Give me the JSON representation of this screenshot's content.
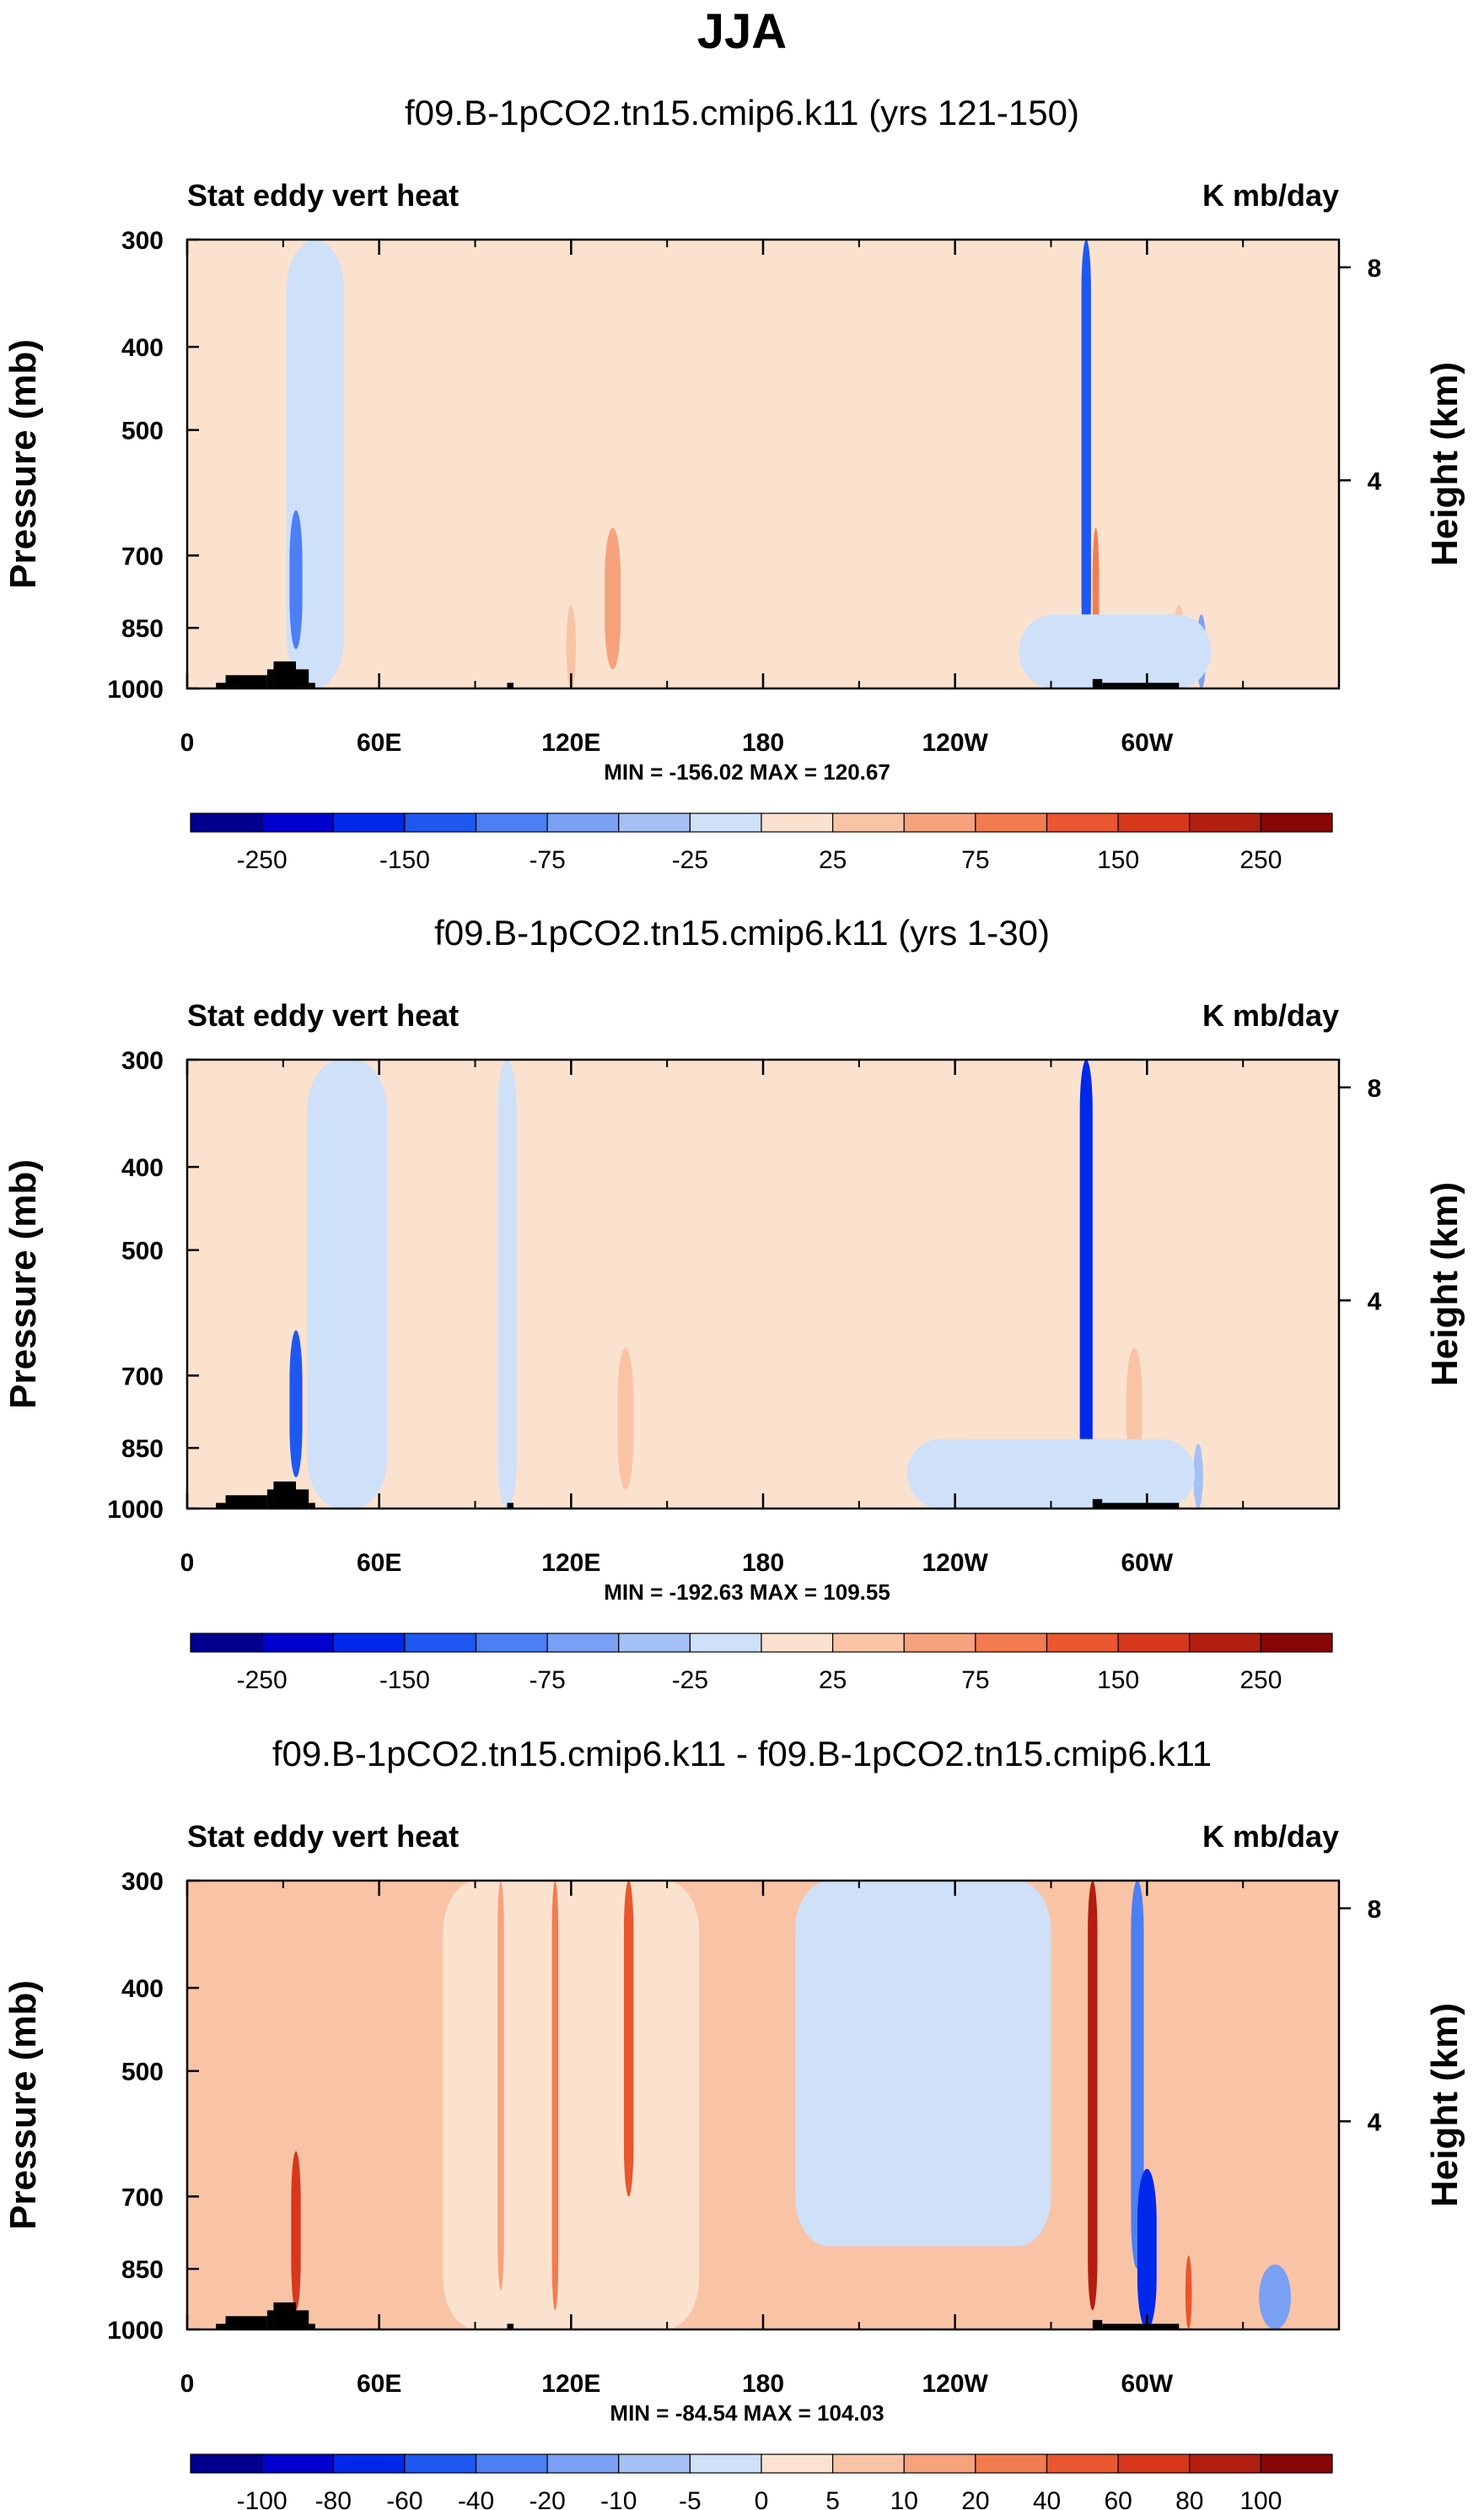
{
  "page_title": "JJA",
  "colors": {
    "neg": [
      "#00008f",
      "#0000cf",
      "#0028ea",
      "#1f58f1",
      "#4c7ef4",
      "#7aa0f3",
      "#a4c0f5",
      "#cfe0f9"
    ],
    "pos": [
      "#fbe2cf",
      "#f9c4a6",
      "#f6a27c",
      "#f27c50",
      "#e9562f",
      "#d7381c",
      "#b21e10",
      "#870505"
    ],
    "topo": "#000000"
  },
  "chart_data": [
    {
      "type": "heatmap",
      "title": "f09.B-1pCO2.tn15.cmip6.k11 (yrs 121-150)",
      "left_label": "Stat eddy vert heat",
      "right_label": "K mb/day",
      "ylabel": "Pressure (mb)",
      "ylabel_right": "Height (km)",
      "y_ticks": [
        "300",
        "400",
        "500",
        "700",
        "850",
        "1000"
      ],
      "y_right_ticks": [
        "8",
        "4"
      ],
      "x_ticks": [
        "0",
        "60E",
        "120E",
        "180",
        "120W",
        "60W"
      ],
      "stats": "MIN = -156.02  MAX = 120.67",
      "colorbar_labels": [
        "-250",
        "-150",
        "-75",
        "-25",
        "25",
        "75",
        "150",
        "250"
      ],
      "colorbar_levels": [
        -300,
        -250,
        -200,
        -150,
        -100,
        -75,
        -50,
        -25,
        0,
        25,
        50,
        75,
        100,
        150,
        200,
        250,
        300
      ],
      "ylim": [
        1000,
        300
      ],
      "xlim": [
        0,
        360
      ],
      "features": [
        {
          "lon": 200,
          "p0": 300,
          "p1": 1000,
          "width": 90,
          "value": 8
        },
        {
          "lon": 40,
          "p0": 300,
          "p1": 1000,
          "width": 18,
          "value": -10
        },
        {
          "lon": 34,
          "p0": 620,
          "p1": 900,
          "width": 4,
          "value": -80
        },
        {
          "lon": 133,
          "p0": 650,
          "p1": 950,
          "width": 5,
          "value": 55
        },
        {
          "lon": 120,
          "p0": 800,
          "p1": 1000,
          "width": 3,
          "value": 30
        },
        {
          "lon": 281,
          "p0": 300,
          "p1": 900,
          "width": 3,
          "value": -140
        },
        {
          "lon": 284,
          "p0": 650,
          "p1": 950,
          "width": 2,
          "value": 80
        },
        {
          "lon": 317,
          "p0": 820,
          "p1": 1000,
          "width": 3,
          "value": -60
        },
        {
          "lon": 310,
          "p0": 800,
          "p1": 1000,
          "width": 4,
          "value": 40
        },
        {
          "lon": 290,
          "p0": 820,
          "p1": 1000,
          "width": 60,
          "value": -12
        }
      ]
    },
    {
      "type": "heatmap",
      "title": "f09.B-1pCO2.tn15.cmip6.k11 (yrs 1-30)",
      "left_label": "Stat eddy vert heat",
      "right_label": "K mb/day",
      "ylabel": "Pressure (mb)",
      "ylabel_right": "Height (km)",
      "y_ticks": [
        "300",
        "400",
        "500",
        "700",
        "850",
        "1000"
      ],
      "y_right_ticks": [
        "8",
        "4"
      ],
      "x_ticks": [
        "0",
        "60E",
        "120E",
        "180",
        "120W",
        "60W"
      ],
      "stats": "MIN = -192.63  MAX = 109.55",
      "colorbar_labels": [
        "-250",
        "-150",
        "-75",
        "-25",
        "25",
        "75",
        "150",
        "250"
      ],
      "colorbar_levels": [
        -300,
        -250,
        -200,
        -150,
        -100,
        -75,
        -50,
        -25,
        0,
        25,
        50,
        75,
        100,
        150,
        200,
        250,
        300
      ],
      "ylim": [
        1000,
        300
      ],
      "xlim": [
        0,
        360
      ],
      "features": [
        {
          "lon": 200,
          "p0": 300,
          "p1": 1000,
          "width": 100,
          "value": 8
        },
        {
          "lon": 50,
          "p0": 300,
          "p1": 1000,
          "width": 25,
          "value": -12
        },
        {
          "lon": 34,
          "p0": 620,
          "p1": 920,
          "width": 4,
          "value": -110
        },
        {
          "lon": 137,
          "p0": 650,
          "p1": 950,
          "width": 5,
          "value": 45
        },
        {
          "lon": 100,
          "p0": 300,
          "p1": 1000,
          "width": 6,
          "value": -10
        },
        {
          "lon": 281,
          "p0": 300,
          "p1": 950,
          "width": 4,
          "value": -180
        },
        {
          "lon": 296,
          "p0": 650,
          "p1": 900,
          "width": 5,
          "value": 40
        },
        {
          "lon": 316,
          "p0": 840,
          "p1": 1000,
          "width": 3,
          "value": -50
        },
        {
          "lon": 270,
          "p0": 830,
          "p1": 1000,
          "width": 90,
          "value": -12
        }
      ]
    },
    {
      "type": "heatmap",
      "title": "f09.B-1pCO2.tn15.cmip6.k11 - f09.B-1pCO2.tn15.cmip6.k11",
      "left_label": "Stat eddy vert heat",
      "right_label": "K mb/day",
      "ylabel": "Pressure (mb)",
      "ylabel_right": "Height (km)",
      "y_ticks": [
        "300",
        "400",
        "500",
        "700",
        "850",
        "1000"
      ],
      "y_right_ticks": [
        "8",
        "4"
      ],
      "x_ticks": [
        "0",
        "60E",
        "120E",
        "180",
        "120W",
        "60W"
      ],
      "stats": "MIN = -84.54  MAX = 104.03",
      "colorbar_labels": [
        "-100",
        "-80",
        "-60",
        "-40",
        "-20",
        "-10",
        "-5",
        "0",
        "5",
        "10",
        "20",
        "40",
        "60",
        "80",
        "100"
      ],
      "colorbar_levels": [
        -120,
        -100,
        -80,
        -60,
        -40,
        -20,
        -10,
        -5,
        0,
        5,
        10,
        20,
        40,
        60,
        80,
        100,
        120
      ],
      "ylim": [
        1000,
        300
      ],
      "xlim": [
        0,
        360
      ],
      "features": [
        {
          "lon": 120,
          "p0": 300,
          "p1": 1000,
          "width": 80,
          "value": 4
        },
        {
          "lon": 230,
          "p0": 300,
          "p1": 800,
          "width": 80,
          "value": -4
        },
        {
          "lon": 34,
          "p0": 620,
          "p1": 950,
          "width": 3,
          "value": 60
        },
        {
          "lon": 138,
          "p0": 300,
          "p1": 700,
          "width": 3,
          "value": 40
        },
        {
          "lon": 115,
          "p0": 300,
          "p1": 950,
          "width": 2,
          "value": 30
        },
        {
          "lon": 98,
          "p0": 300,
          "p1": 900,
          "width": 2,
          "value": 15
        },
        {
          "lon": 283,
          "p0": 300,
          "p1": 950,
          "width": 3,
          "value": 90
        },
        {
          "lon": 297,
          "p0": 300,
          "p1": 850,
          "width": 4,
          "value": -40
        },
        {
          "lon": 300,
          "p0": 650,
          "p1": 1000,
          "width": 6,
          "value": -80
        },
        {
          "lon": 313,
          "p0": 820,
          "p1": 1000,
          "width": 2,
          "value": 50
        },
        {
          "lon": 340,
          "p0": 840,
          "p1": 1000,
          "width": 10,
          "value": -20
        }
      ]
    }
  ],
  "topography": [
    {
      "lon0": 9,
      "lon1": 12,
      "p": 985
    },
    {
      "lon0": 12,
      "lon1": 25,
      "p": 965
    },
    {
      "lon0": 25,
      "lon1": 27,
      "p": 950
    },
    {
      "lon0": 27,
      "lon1": 34,
      "p": 930
    },
    {
      "lon0": 34,
      "lon1": 38,
      "p": 950
    },
    {
      "lon0": 38,
      "lon1": 40,
      "p": 985
    },
    {
      "lon0": 100,
      "lon1": 102,
      "p": 985
    },
    {
      "lon0": 283,
      "lon1": 286,
      "p": 975
    },
    {
      "lon0": 286,
      "lon1": 310,
      "p": 985
    }
  ]
}
